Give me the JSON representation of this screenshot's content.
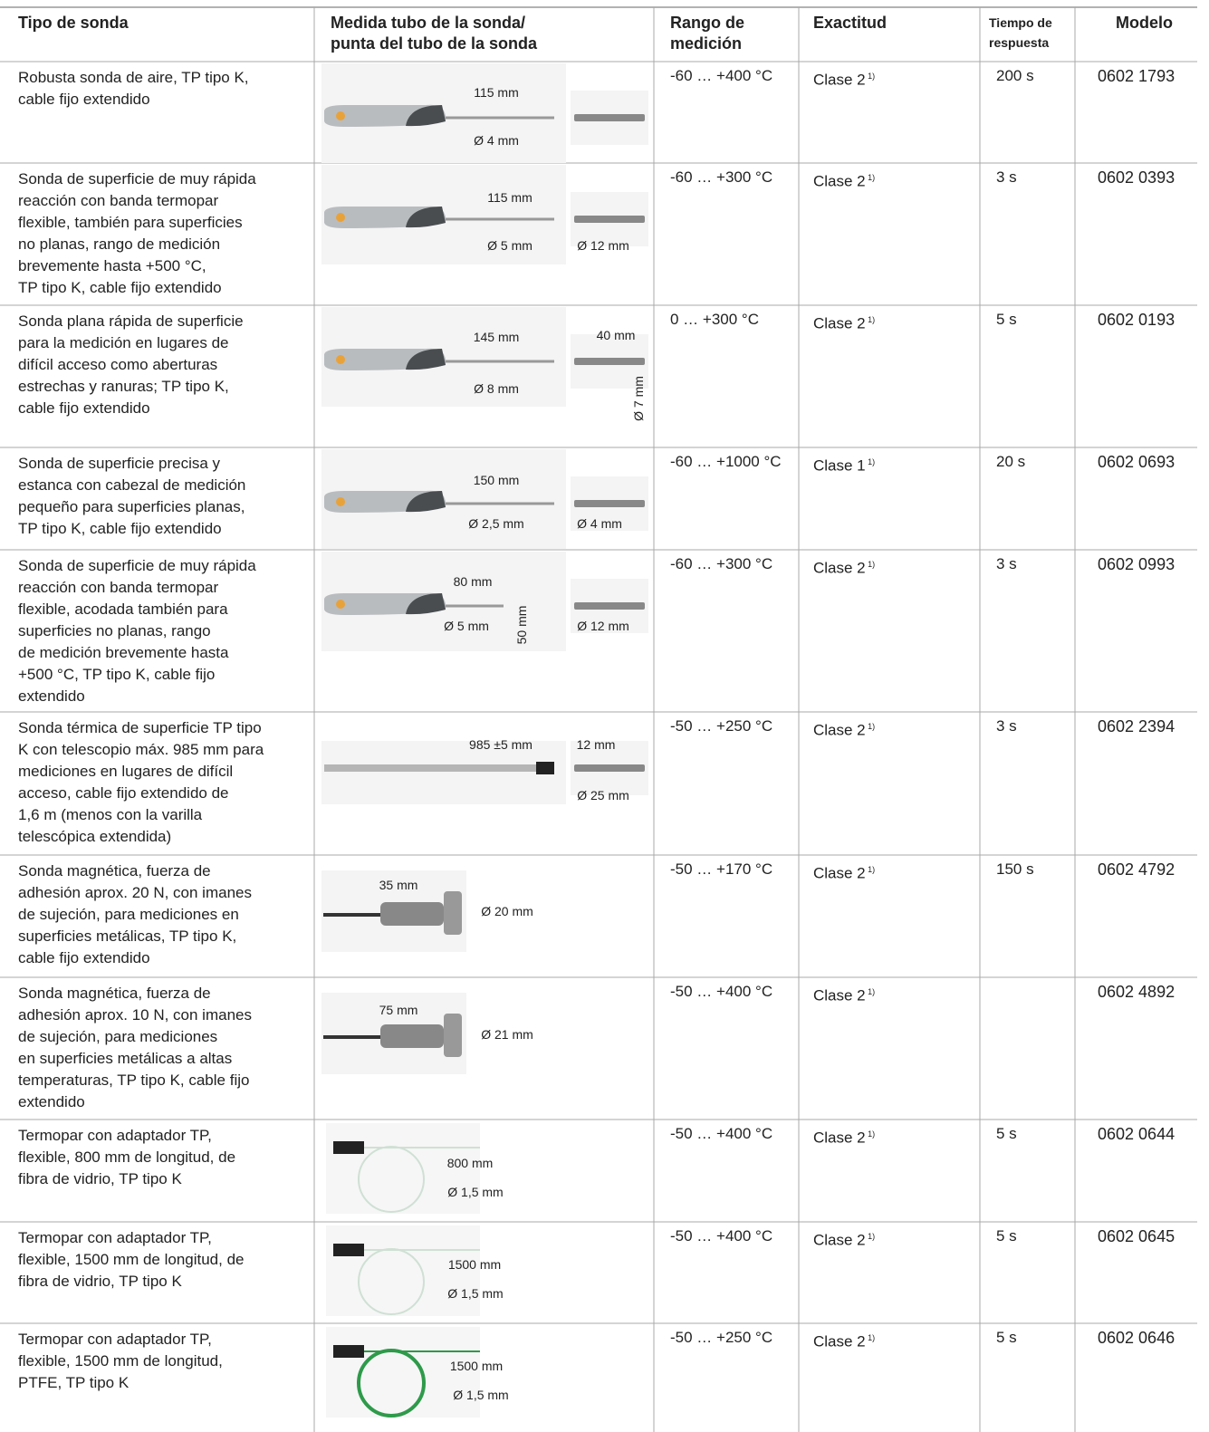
{
  "header": [
    "Tipo de sonda",
    [
      "Medida tubo de la sonda/",
      "punta del tubo de la sonda"
    ],
    [
      "Rango de",
      "medición"
    ],
    "Exactitud",
    [
      "Tiempo de",
      "respuesta"
    ],
    "Modelo"
  ],
  "rows": [
    {
      "desc": [
        "Robusta sonda de aire, TP tipo K,",
        "cable fijo extendido"
      ],
      "dims": [
        "115 mm",
        "Ø 4 mm"
      ],
      "range": "-60 … +400 °C",
      "accuracy": "Clase 2",
      "note": "1)",
      "time": "200 s",
      "model": "0602 1793"
    },
    {
      "desc": [
        "Sonda de superficie de muy rápida",
        "reacción con banda termopar",
        "flexible, también para superficies",
        "no planas, rango de medición",
        "brevemente hasta +500 °C,",
        "TP tipo K, cable fijo extendido"
      ],
      "dims": [
        "115 mm",
        "Ø 5 mm",
        "Ø 12 mm"
      ],
      "range": "-60 … +300 °C",
      "accuracy": "Clase 2",
      "note": "1)",
      "time": "3 s",
      "model": "0602 0393"
    },
    {
      "desc": [
        "Sonda plana rápida de superficie",
        "para la medición en lugares de",
        "difícil acceso como aberturas",
        "estrechas y ranuras; TP tipo K,",
        "cable fijo extendido"
      ],
      "dims": [
        "145 mm",
        "40 mm",
        "Ø 8 mm",
        "Ø 7 mm"
      ],
      "range": "0 … +300 °C",
      "accuracy": "Clase 2",
      "note": "1)",
      "time": "5 s",
      "model": "0602 0193"
    },
    {
      "desc": [
        "Sonda de superficie precisa y",
        "estanca con cabezal de medición",
        "pequeño para superficies planas,",
        "TP tipo K, cable fijo extendido"
      ],
      "dims": [
        "150 mm",
        "Ø 2,5 mm",
        "Ø 4 mm"
      ],
      "range": "-60 … +1000 °C",
      "accuracy": "Clase 1",
      "note": "1)",
      "time": "20 s",
      "model": "0602 0693"
    },
    {
      "desc": [
        "Sonda de superficie de muy rápida",
        "reacción con banda termopar",
        "flexible, acodada también para",
        "superficies no planas, rango",
        "de medición brevemente hasta",
        "+500 °C, TP tipo K, cable fijo",
        "extendido"
      ],
      "dims": [
        "80 mm",
        "Ø 5 mm",
        "50 mm",
        "Ø 12 mm"
      ],
      "range": "-60 … +300 °C",
      "accuracy": "Clase 2",
      "note": "1)",
      "time": "3 s",
      "model": "0602 0993"
    },
    {
      "desc": [
        "Sonda térmica de superficie TP tipo",
        "K con telescopio máx. 985 mm para",
        "mediciones en lugares de difícil",
        "acceso, cable fijo extendido de",
        "1,6 m (menos con la varilla",
        "telescópica extendida)"
      ],
      "dims": [
        "985 ±5 mm",
        "12 mm",
        "Ø 25 mm"
      ],
      "range": "-50 … +250 °C",
      "accuracy": "Clase 2",
      "note": "1)",
      "time": "3 s",
      "model": "0602 2394"
    },
    {
      "desc": [
        "Sonda magnética, fuerza de",
        "adhesión aprox. 20 N, con imanes",
        "de sujeción, para mediciones en",
        "superficies metálicas, TP tipo K,",
        "cable fijo extendido"
      ],
      "dims": [
        "35 mm",
        "Ø 20 mm"
      ],
      "range": "-50 … +170 °C",
      "accuracy": "Clase 2",
      "note": "1)",
      "time": "150 s",
      "model": "0602 4792"
    },
    {
      "desc": [
        "Sonda magnética, fuerza de",
        "adhesión aprox. 10 N, con imanes",
        "de sujeción, para mediciones",
        "en superficies metálicas a altas",
        "temperaturas, TP tipo K, cable fijo",
        "extendido"
      ],
      "dims": [
        "75 mm",
        "Ø 21 mm"
      ],
      "range": "-50 … +400 °C",
      "accuracy": "Clase 2",
      "note": "1)",
      "time": null,
      "model": "0602 4892"
    },
    {
      "desc": [
        "Termopar con adaptador TP,",
        "flexible, 800 mm de longitud, de",
        "fibra de vidrio, TP tipo K"
      ],
      "dims": [
        "800 mm",
        "Ø 1,5 mm"
      ],
      "range": "-50 … +400 °C",
      "accuracy": "Clase 2",
      "note": "1)",
      "time": "5 s",
      "model": "0602 0644"
    },
    {
      "desc": [
        "Termopar con adaptador TP,",
        "flexible, 1500 mm de longitud, de",
        "fibra de vidrio, TP tipo K"
      ],
      "dims": [
        "1500 mm",
        "Ø 1,5 mm"
      ],
      "range": "-50 … +400 °C",
      "accuracy": "Clase 2",
      "note": "1)",
      "time": "5 s",
      "model": "0602 0645"
    },
    {
      "desc": [
        "Termopar con adaptador TP,",
        "flexible, 1500 mm de longitud,",
        "PTFE, TP tipo K"
      ],
      "dims": [
        "1500 mm",
        "Ø 1,5 mm"
      ],
      "range": "-50 … +250 °C",
      "accuracy": "Clase 2",
      "note": "1)",
      "time": "5 s",
      "model": "0602 0646"
    }
  ]
}
